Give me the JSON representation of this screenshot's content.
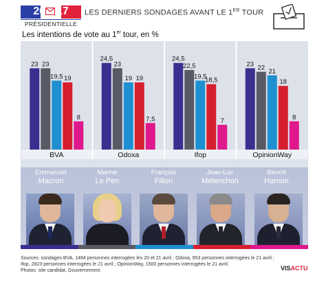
{
  "header": {
    "logo_year_left": "20",
    "logo_year_right": "17",
    "logo_subtitle": "PRÉSIDENTIELLE",
    "title": "LES DERNIERS SONDAGES AVANT LE 1",
    "title_sup": "ER",
    "title_end": " TOUR"
  },
  "subtitle": {
    "text": "Les intentions de vote au 1",
    "sup": "er",
    "end": " tour, en %"
  },
  "chart_data": {
    "type": "bar",
    "categories": [
      "BVA",
      "Odoxa",
      "Ifop",
      "OpinionWay"
    ],
    "series": [
      {
        "name": "Emmanuel Macron",
        "color": "#3a2f8f",
        "values": [
          23,
          24.5,
          24.5,
          23
        ],
        "labels": [
          "23",
          "24,5",
          "24,5",
          "23"
        ]
      },
      {
        "name": "Marine Le Pen",
        "color": "#5a5a66",
        "values": [
          23,
          23,
          22.5,
          22
        ],
        "labels": [
          "23",
          "23",
          "22,5",
          "22"
        ]
      },
      {
        "name": "François Fillon",
        "color": "#1e8fd0",
        "values": [
          19.5,
          19,
          19.5,
          21
        ],
        "labels": [
          "19,5",
          "19",
          "19,5",
          "21"
        ]
      },
      {
        "name": "Jean-Luc Mélenchon",
        "color": "#d61f2e",
        "values": [
          19,
          19,
          18.5,
          18
        ],
        "labels": [
          "19",
          "19",
          "18,5",
          "18"
        ]
      },
      {
        "name": "Benoît Hamon",
        "color": "#e0188c",
        "values": [
          8,
          7.5,
          7,
          8
        ],
        "labels": [
          "8",
          "7,5",
          "7",
          "8"
        ]
      }
    ],
    "ylim": [
      0,
      26
    ],
    "grid": false,
    "legend": "bottom (candidate portraits)"
  },
  "candidates": [
    {
      "first": "Emmanuel",
      "last": "Macron"
    },
    {
      "first": "Marine",
      "last": "Le Pen"
    },
    {
      "first": "François",
      "last": "Fillon"
    },
    {
      "first": "Jean-Luc",
      "last": "Mélenchon"
    },
    {
      "first": "Benoît",
      "last": "Hamon"
    }
  ],
  "footer": {
    "line1": "Sources: sondages BVA, 1494 personnes interrogées les 20 et 21 avril ; Odoxa, 953 personnes interrogées le 21 avril ;",
    "line2": "Ifop, 2823 personnes interrogées le 21 avril ; OpinionWay, 1500 personnes interrogées le 21 avril.",
    "line3": "Photos: site candidat, Gouvernement."
  },
  "brand": {
    "part1": "VIS",
    "part2": "ACTU"
  },
  "colors": {
    "blue": "#2a3fa6",
    "red": "#e0223b"
  },
  "icons": [
    "envelope-icon",
    "ballot-box-icon"
  ]
}
